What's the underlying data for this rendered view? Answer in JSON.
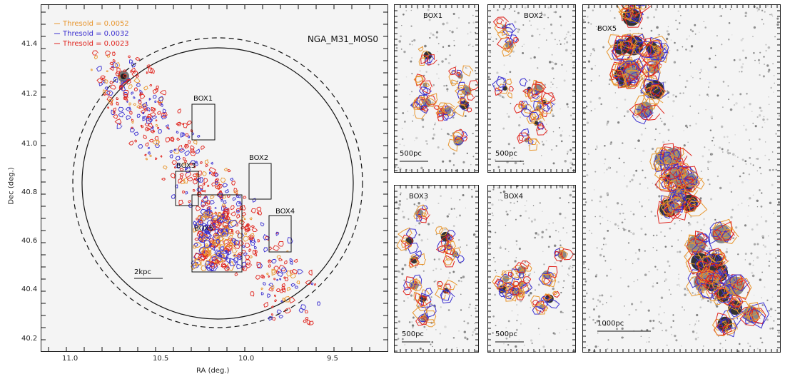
{
  "main": {
    "title": "NGA_M31_MOS0",
    "legend": [
      {
        "label": "Thresold = 0.0052",
        "color": "#e8962e"
      },
      {
        "label": "Thresold = 0.0032",
        "color": "#3a2fd0"
      },
      {
        "label": "Thresold = 0.0023",
        "color": "#e0251e"
      }
    ],
    "xlabel": "RA (deg.)",
    "ylabel": "Dec (deg.)",
    "xticks": [
      "11.0",
      "10.5",
      "10.0",
      "9.5"
    ],
    "yticks": [
      "41.4",
      "41.2",
      "41.0",
      "40.8",
      "40.6",
      "40.4",
      "40.2"
    ],
    "scalebar": "2kpc",
    "boxes": [
      "BOX1",
      "BOX2",
      "BOX3",
      "BOX4",
      "BOX5"
    ]
  },
  "insets": [
    {
      "title": "BOX1",
      "scalebar": "500pc"
    },
    {
      "title": "BOX2",
      "scalebar": "500pc"
    },
    {
      "title": "BOX3",
      "scalebar": "500pc"
    },
    {
      "title": "BOX4",
      "scalebar": "500pc"
    },
    {
      "title": "BOX5",
      "scalebar": "1000pc"
    }
  ],
  "colors": {
    "orange": "#e8962e",
    "blue": "#3a2fd0",
    "red": "#e0251e"
  }
}
